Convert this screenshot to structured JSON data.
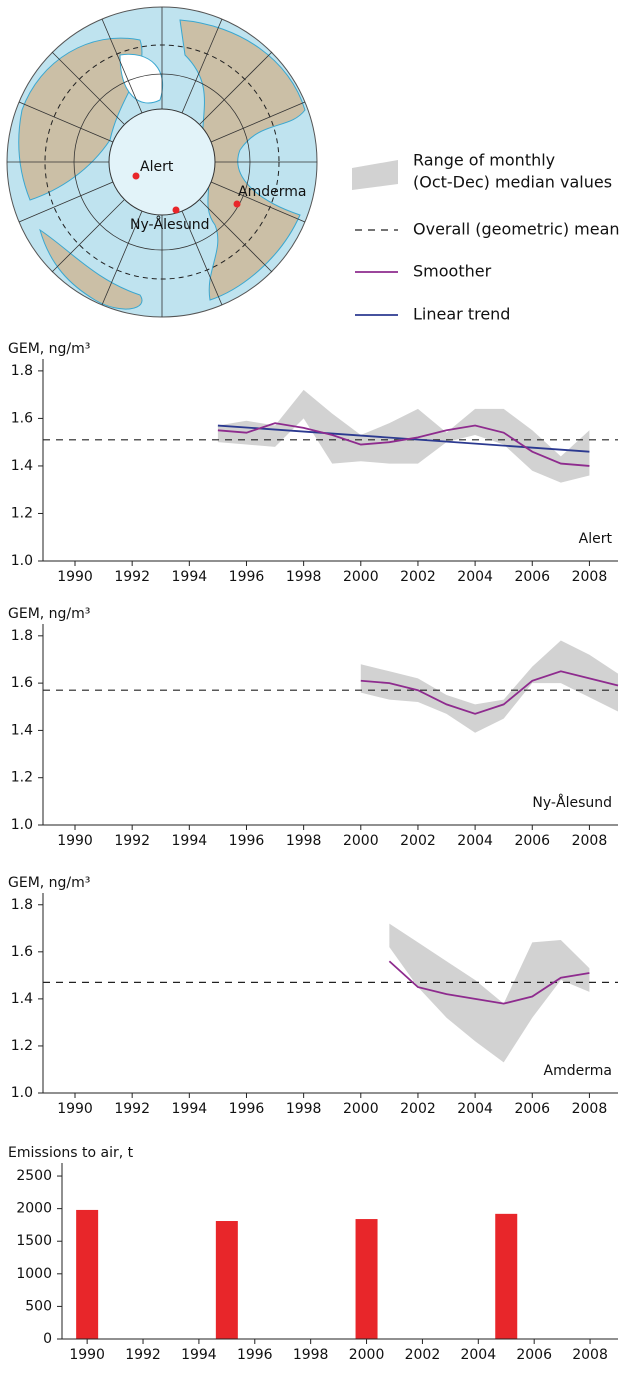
{
  "map": {
    "stations": [
      {
        "name": "Alert"
      },
      {
        "name": "Ny-Ålesund"
      },
      {
        "name": "Amderma"
      }
    ]
  },
  "legend": [
    {
      "label": [
        "Range of monthly",
        "(Oct-Dec) median values"
      ],
      "color": "#d2d2d2"
    },
    {
      "label": [
        "Overall (geometric) mean"
      ],
      "color": "#222222"
    },
    {
      "label": [
        "Smoother"
      ],
      "color": "#8e2b8e"
    },
    {
      "label": [
        "Linear trend"
      ],
      "color": "#2b3990"
    }
  ],
  "chart_data": [
    {
      "type": "line",
      "ylabel": "GEM, ng/m³",
      "station": "Alert",
      "x": [
        1995,
        1996,
        1997,
        1998,
        1999,
        2000,
        2001,
        2002,
        2003,
        2004,
        2005,
        2006,
        2007,
        2008
      ],
      "range": {
        "high": [
          1.57,
          1.59,
          1.57,
          1.72,
          1.62,
          1.53,
          1.58,
          1.64,
          1.54,
          1.64,
          1.64,
          1.55,
          1.44,
          1.55
        ],
        "low": [
          1.5,
          1.49,
          1.48,
          1.6,
          1.41,
          1.42,
          1.41,
          1.41,
          1.5,
          1.53,
          1.49,
          1.38,
          1.33,
          1.36
        ]
      },
      "mean": 1.51,
      "smoother": [
        1.55,
        1.54,
        1.58,
        1.56,
        1.53,
        1.49,
        1.5,
        1.52,
        1.55,
        1.57,
        1.54,
        1.46,
        1.41,
        1.4
      ],
      "trend": {
        "x": [
          1995,
          2008
        ],
        "values": [
          1.57,
          1.46
        ]
      },
      "xlim": [
        1988.88,
        2009
      ],
      "ylim": [
        1.0,
        1.85
      ],
      "xticks": [
        1990,
        1992,
        1994,
        1996,
        1998,
        2000,
        2002,
        2004,
        2006,
        2008
      ],
      "yticks": [
        {
          "value": 1.0,
          "label": "1.0"
        },
        1.2,
        1.4,
        1.6,
        1.8
      ]
    },
    {
      "type": "line",
      "ylabel": "GEM, ng/m³",
      "station": "Ny-Ålesund",
      "x": [
        2000,
        2001,
        2002,
        2003,
        2004,
        2005,
        2006,
        2007,
        2008,
        2009
      ],
      "range": {
        "high": [
          1.68,
          1.65,
          1.62,
          1.55,
          1.51,
          1.53,
          1.67,
          1.78,
          1.72,
          1.64
        ],
        "low": [
          1.56,
          1.53,
          1.52,
          1.47,
          1.39,
          1.45,
          1.6,
          1.6,
          1.54,
          1.48
        ]
      },
      "mean": 1.57,
      "smoother": [
        1.61,
        1.6,
        1.57,
        1.51,
        1.47,
        1.51,
        1.61,
        1.65,
        1.62,
        1.59
      ],
      "xlim": [
        1988.88,
        2009
      ],
      "ylim": [
        1.0,
        1.85
      ],
      "xticks": [
        1990,
        1992,
        1994,
        1996,
        1998,
        2000,
        2002,
        2004,
        2006,
        2008
      ],
      "yticks": [
        {
          "value": 1.0,
          "label": "1.0"
        },
        1.2,
        1.4,
        1.6,
        1.8
      ]
    },
    {
      "type": "line",
      "ylabel": "GEM, ng/m³",
      "station": "Amderma",
      "x": [
        2001,
        2002,
        2003,
        2004,
        2005,
        2006,
        2007,
        2008
      ],
      "range": {
        "high": [
          1.72,
          1.64,
          1.56,
          1.48,
          1.38,
          1.64,
          1.65,
          1.53
        ],
        "low": [
          1.62,
          1.45,
          1.32,
          1.22,
          1.13,
          1.32,
          1.48,
          1.43
        ]
      },
      "mean": 1.47,
      "smoother": [
        1.56,
        1.45,
        1.42,
        1.4,
        1.38,
        1.41,
        1.49,
        1.51
      ],
      "xlim": [
        1988.88,
        2009
      ],
      "ylim": [
        1.0,
        1.85
      ],
      "xticks": [
        1990,
        1992,
        1994,
        1996,
        1998,
        2000,
        2002,
        2004,
        2006,
        2008
      ],
      "yticks": [
        {
          "value": 1.0,
          "label": "1.0"
        },
        1.2,
        1.4,
        1.6,
        1.8
      ]
    },
    {
      "type": "bar",
      "ylabel": "Emissions to air, t",
      "x": [
        1990,
        1995,
        2000,
        2005
      ],
      "values": [
        1980,
        1810,
        1840,
        1920
      ],
      "color": "#e8262a",
      "xlim": [
        1989.1,
        2009
      ],
      "ylim": [
        0,
        2700
      ],
      "xticks": [
        1990,
        1992,
        1994,
        1996,
        1998,
        2000,
        2002,
        2004,
        2006,
        2008
      ],
      "yticks": [
        0,
        500,
        1000,
        1500,
        2000,
        2500
      ]
    }
  ]
}
